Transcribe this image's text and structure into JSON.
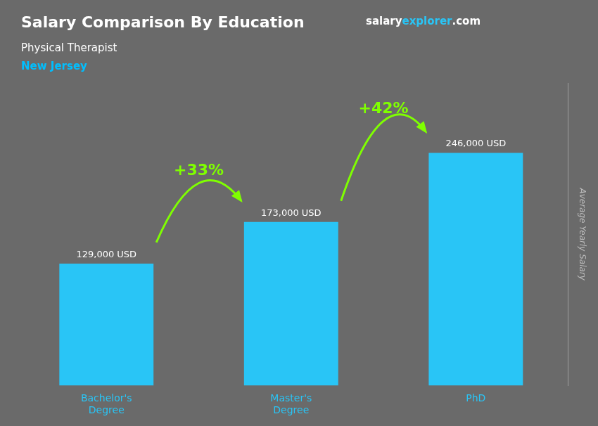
{
  "chart_data": {
    "type": "bar",
    "title": "Salary Comparison By Education",
    "subtitle": [
      "Physical Therapist",
      "New Jersey"
    ],
    "ylabel": "Average Yearly Salary",
    "categories": [
      "Bachelor's\nDegree",
      "Master's\nDegree",
      "PhD"
    ],
    "values": [
      129000,
      173000,
      246000
    ],
    "value_labels": [
      "129,000 USD",
      "173,000 USD",
      "246,000 USD"
    ],
    "data_labels": true,
    "color": "#29C5F6",
    "ylim": [
      0,
      320000
    ],
    "yticks": [],
    "tick_labels": "x",
    "grid": false,
    "annotations": [
      {
        "text": "+33%",
        "color": "#7FFF00"
      },
      {
        "text": "+42%",
        "color": "#7FFF00"
      },
      {
        "text": "salary",
        "color": "#FFFFFF"
      },
      {
        "text": "explorer",
        "color": "#29C5F6"
      },
      {
        "text": ".com",
        "color": "#FFFFFF"
      }
    ]
  }
}
